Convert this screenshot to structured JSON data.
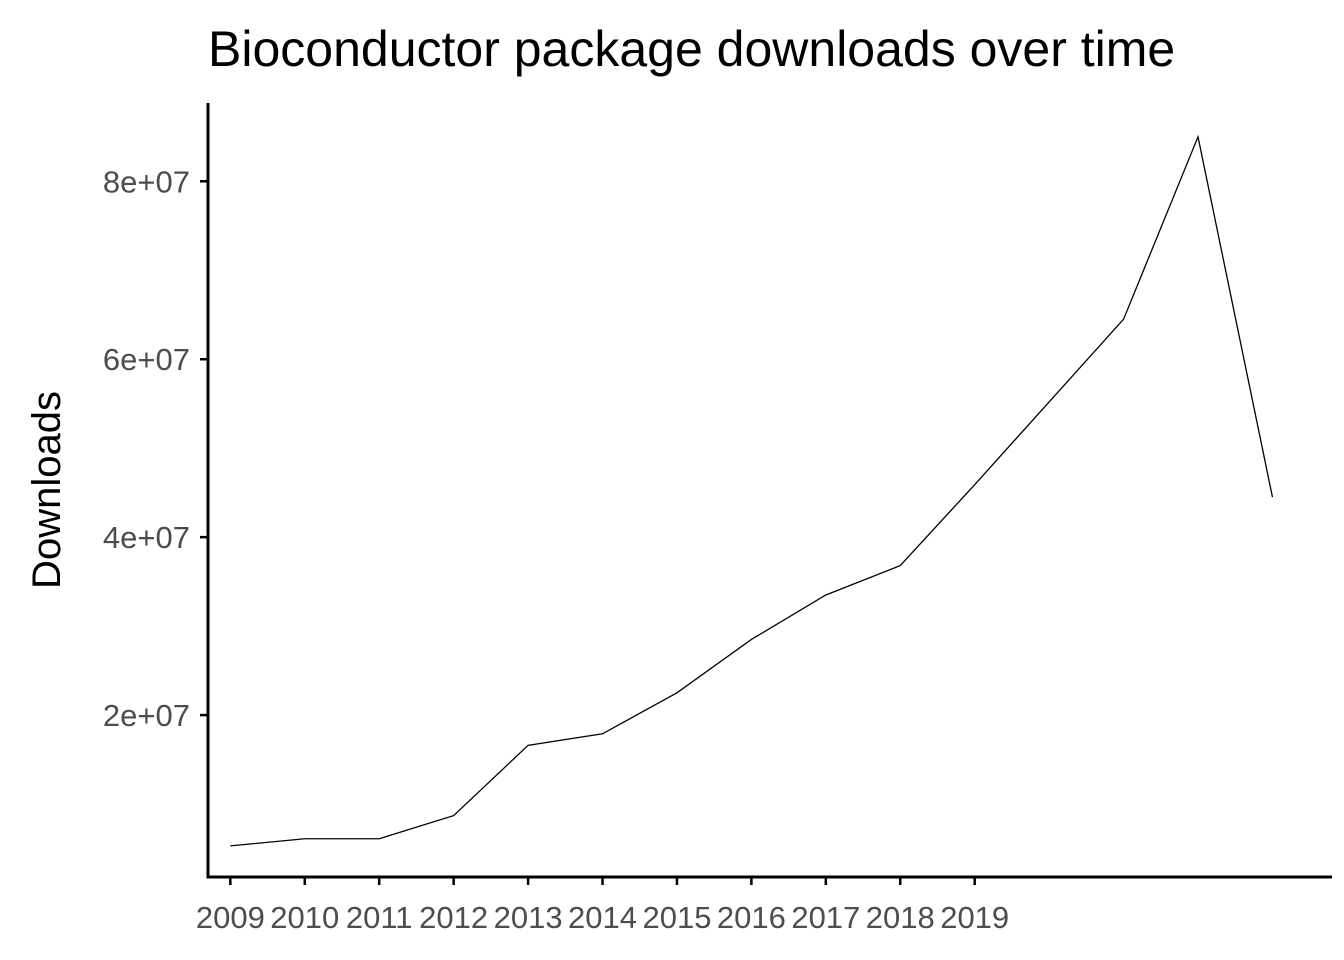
{
  "chart_data": {
    "type": "line",
    "title": "Bioconductor package downloads over time",
    "xlabel": "",
    "ylabel": "Downloads",
    "x_tick_labels": [
      "2009",
      "2010",
      "2011",
      "2012",
      "2013",
      "2014",
      "2015",
      "2016",
      "2017",
      "2018",
      "2019"
    ],
    "y_tick_labels": [
      "2e+07",
      "4e+07",
      "6e+07",
      "8e+07"
    ],
    "y_ticks": [
      20000000,
      40000000,
      60000000,
      80000000
    ],
    "x": [
      2009,
      2010,
      2011,
      2012,
      2013,
      2014,
      2015,
      2016,
      2017,
      2018,
      2019,
      2020,
      2021,
      2022,
      2023
    ],
    "series": [
      {
        "values": [
          5300000,
          6100000,
          6100000,
          8700000,
          16600000,
          17900000,
          22500000,
          28500000,
          33500000,
          36800000,
          45900000,
          55200000,
          64500000,
          85000000,
          44500000
        ]
      }
    ],
    "xlim": [
      2008.7,
      2023.8
    ],
    "ylim": [
      1800000,
      88800000
    ],
    "grid": false,
    "legend": "none"
  }
}
